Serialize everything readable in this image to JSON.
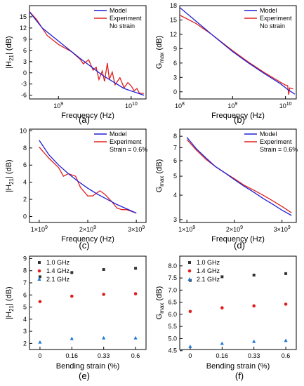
{
  "chart_data": [
    {
      "panel": "(a)",
      "type": "line",
      "xlabel": "Frequency (Hz)",
      "ylabel": "|H21| (dB)",
      "x_scale": "log",
      "xlim": [
        400000000,
        16000000000
      ],
      "ylim": [
        -7,
        18
      ],
      "xticks": [
        {
          "v": 1000000000,
          "label": "10^9"
        },
        {
          "v": 10000000000,
          "label": "10^10"
        }
      ],
      "yticks": [
        -6,
        -3,
        0,
        3,
        6,
        9,
        12,
        15
      ],
      "annotation": "No strain",
      "legend_position": "top-right",
      "series": [
        {
          "name": "Model",
          "color": "#1f1fd6",
          "x": [
            400000000,
            600000000,
            1000000000,
            2000000000,
            4000000000,
            8000000000,
            15000000000
          ],
          "y": [
            16.3,
            12.0,
            8.5,
            3.8,
            -0.6,
            -4.2,
            -6.0
          ]
        },
        {
          "name": "Experiment",
          "color": "#e02020",
          "x": [
            400000000,
            500000000,
            700000000,
            1000000000,
            1500000000,
            2000000000,
            2200000000,
            2600000000,
            3000000000,
            3300000000,
            3600000000,
            4000000000,
            4300000000,
            4700000000,
            5000000000,
            5500000000,
            6000000000,
            7000000000,
            8000000000,
            9000000000,
            10000000000,
            11000000000,
            12000000000,
            13000000000,
            15000000000
          ],
          "y": [
            16.4,
            14.3,
            10.0,
            7.6,
            5.7,
            3.6,
            2.4,
            3.5,
            0.7,
            1.5,
            -1.8,
            0.5,
            -2.3,
            2.6,
            -1.8,
            0.2,
            -3.2,
            -1.3,
            -4.0,
            -2.6,
            -3.5,
            -4.8,
            -4.2,
            -5.5,
            -5.5
          ]
        }
      ]
    },
    {
      "panel": "(b)",
      "type": "line",
      "xlabel": "Frequency (Hz)",
      "ylabel": "Gmax (dB)",
      "x_scale": "log",
      "xlim": [
        100000000,
        16000000000
      ],
      "ylim": [
        -1.5,
        18
      ],
      "xticks": [
        {
          "v": 100000000,
          "label": "10^8"
        },
        {
          "v": 1000000000,
          "label": "10^9"
        },
        {
          "v": 10000000000,
          "label": "10^10"
        }
      ],
      "yticks": [
        0,
        3,
        6,
        9,
        12,
        15,
        18
      ],
      "annotation": "No strain",
      "legend_position": "top-right",
      "series": [
        {
          "name": "Model",
          "color": "#1f1fd6",
          "x": [
            100000000,
            200000000,
            400000000,
            1000000000,
            2000000000,
            4000000000,
            8000000000,
            11000000000,
            15000000000
          ],
          "y": [
            17.6,
            14.8,
            12.0,
            8.4,
            6.0,
            3.8,
            1.7,
            0.5,
            -0.5
          ]
        },
        {
          "name": "Experiment",
          "color": "#e02020",
          "x": [
            100000000,
            200000000,
            400000000,
            1000000000,
            2000000000,
            4000000000,
            8000000000,
            10000000000,
            11000000000,
            11500000000,
            12000000000,
            14000000000
          ],
          "y": [
            16.0,
            14.3,
            12.0,
            8.6,
            6.2,
            4.0,
            2.0,
            1.4,
            1.3,
            -0.6,
            0.8,
            0.6
          ]
        }
      ]
    },
    {
      "panel": "(c)",
      "type": "line",
      "xlabel": "Frequency (Hz)",
      "ylabel": "|H21| (dB)",
      "x_scale": "linear",
      "xlim": [
        800000000,
        3200000000
      ],
      "ylim": [
        -0.7,
        10.2
      ],
      "xticks": [
        {
          "v": 1000000000,
          "label": "1×10^9"
        },
        {
          "v": 2000000000,
          "label": "2×10^9"
        },
        {
          "v": 3000000000,
          "label": "3×10^9"
        }
      ],
      "yticks": [
        0,
        2,
        4,
        6,
        8,
        10
      ],
      "annotation": "Strain = 0.6%",
      "legend_position": "top-right",
      "series": [
        {
          "name": "Model",
          "color": "#1f1fd6",
          "x": [
            1000000000,
            1200000000,
            1400000000,
            1600000000,
            1800000000,
            2000000000,
            2200000000,
            2400000000,
            2600000000,
            2800000000,
            3000000000
          ],
          "y": [
            8.9,
            7.2,
            6.0,
            5.0,
            4.1,
            3.3,
            2.6,
            2.0,
            1.4,
            0.9,
            0.4
          ]
        },
        {
          "name": "Experiment",
          "color": "#e02020",
          "x": [
            1000000000,
            1200000000,
            1400000000,
            1500000000,
            1600000000,
            1750000000,
            1850000000,
            2000000000,
            2100000000,
            2250000000,
            2350000000,
            2500000000,
            2600000000,
            2700000000,
            2800000000,
            3000000000
          ],
          "y": [
            8.1,
            6.8,
            5.7,
            4.7,
            5.0,
            4.7,
            3.4,
            2.4,
            2.4,
            3.0,
            2.6,
            1.7,
            1.0,
            0.8,
            0.8,
            0.4
          ]
        }
      ]
    },
    {
      "panel": "(d)",
      "type": "line",
      "xlabel": "Frequency (Hz)",
      "ylabel": "Gmax (dB)",
      "x_scale": "linear",
      "y_scale": "log",
      "xlim": [
        850000000,
        3300000000
      ],
      "ylim": [
        2.9,
        8.7
      ],
      "xticks": [
        {
          "v": 1000000000,
          "label": "1×10^9"
        },
        {
          "v": 2000000000,
          "label": "2×10^9"
        },
        {
          "v": 3000000000,
          "label": "3×10^9"
        }
      ],
      "yticks": [
        3,
        4,
        5,
        6,
        7,
        8
      ],
      "annotation": "Strain = 0.6%",
      "legend_position": "top-right",
      "series": [
        {
          "name": "Model",
          "color": "#1f1fd6",
          "x": [
            1000000000,
            1200000000,
            1400000000,
            1600000000,
            1800000000,
            2000000000,
            2200000000,
            2400000000,
            2600000000,
            2800000000,
            3000000000,
            3200000000
          ],
          "y": [
            7.9,
            6.9,
            6.2,
            5.6,
            5.2,
            4.8,
            4.45,
            4.15,
            3.85,
            3.6,
            3.35,
            3.15
          ]
        },
        {
          "name": "Experiment",
          "color": "#e02020",
          "x": [
            1000000000,
            1200000000,
            1400000000,
            1600000000,
            1800000000,
            2000000000,
            2200000000,
            2400000000,
            2600000000,
            2800000000,
            3000000000,
            3200000000
          ],
          "y": [
            7.7,
            6.8,
            6.1,
            5.6,
            5.2,
            4.85,
            4.5,
            4.25,
            4.0,
            3.75,
            3.5,
            3.25
          ]
        }
      ]
    },
    {
      "panel": "(e)",
      "type": "scatter",
      "xlabel": "Bending strain (%)",
      "ylabel": "|H21| (dB)",
      "categories": [
        "0",
        "0.16",
        "0.33",
        "0.6"
      ],
      "ylim": [
        1.5,
        9.2
      ],
      "yticks": [
        2,
        3,
        4,
        5,
        6,
        7,
        8,
        9
      ],
      "legend_position": "top-left",
      "series": [
        {
          "name": "1.0 GHz",
          "color": "#333333",
          "marker": "square",
          "values": [
            7.5,
            7.85,
            8.1,
            8.2
          ]
        },
        {
          "name": "1.4 GHz",
          "color": "#e02020",
          "marker": "circle",
          "values": [
            5.45,
            5.9,
            6.05,
            6.1
          ]
        },
        {
          "name": "2.1 GHz",
          "color": "#1f78d6",
          "marker": "triangle",
          "values": [
            2.1,
            2.4,
            2.45,
            2.45
          ]
        }
      ]
    },
    {
      "panel": "(f)",
      "type": "scatter",
      "xlabel": "Bending strain (%)",
      "ylabel": "Gmax (dB)",
      "categories": [
        "0",
        "0.16",
        "0.33",
        "0.6"
      ],
      "ylim": [
        4.55,
        8.4
      ],
      "yticks": [
        4.5,
        5.0,
        5.5,
        6.0,
        6.5,
        7.0,
        7.5,
        8.0
      ],
      "ytick_labels": [
        "4.5",
        "5.0",
        "5.5",
        "6.0",
        "6.5",
        "7.0",
        "7.5",
        "8.0"
      ],
      "legend_position": "top-left",
      "series": [
        {
          "name": "1.0 GHz",
          "color": "#333333",
          "marker": "square",
          "values": [
            7.4,
            7.55,
            7.62,
            7.68
          ]
        },
        {
          "name": "1.4 GHz",
          "color": "#e02020",
          "marker": "circle",
          "values": [
            6.12,
            6.27,
            6.35,
            6.42
          ]
        },
        {
          "name": "2.1 GHz",
          "color": "#1f78d6",
          "marker": "triangle",
          "values": [
            4.67,
            4.8,
            4.88,
            4.92
          ]
        }
      ]
    }
  ]
}
